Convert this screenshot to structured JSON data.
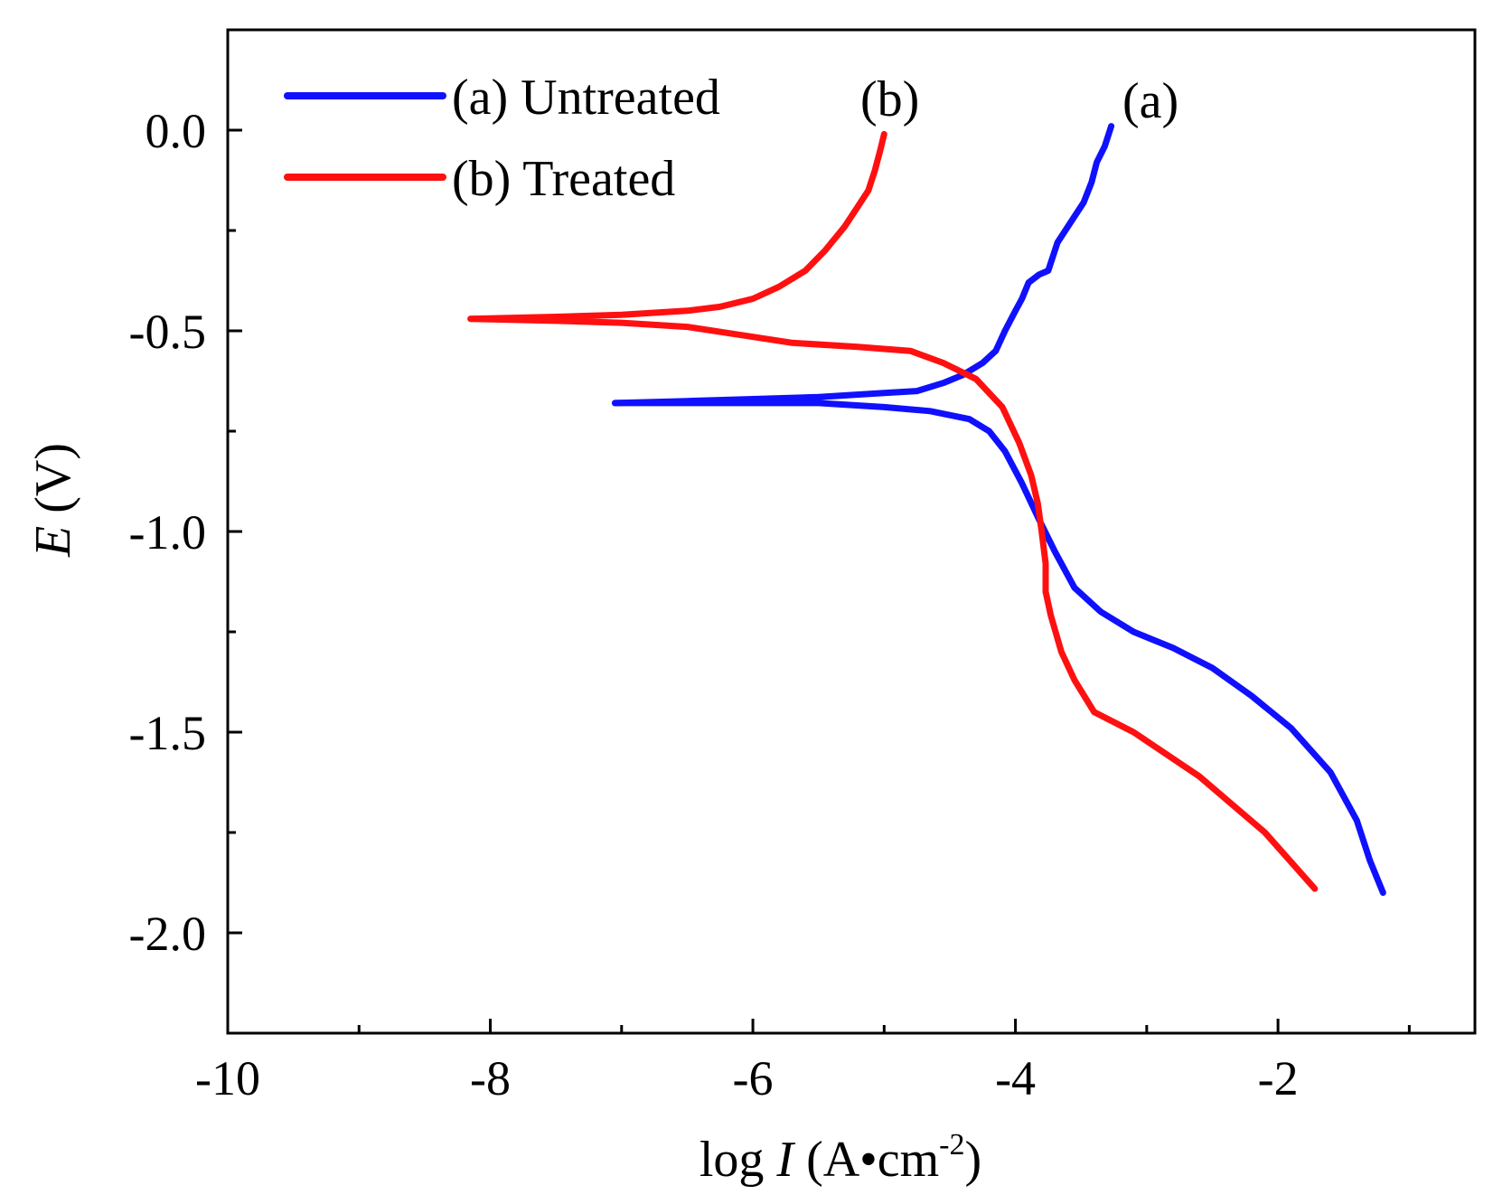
{
  "chart_data": {
    "type": "line",
    "title": "",
    "xlabel": {
      "prefix": "log ",
      "italic": "I",
      "unit_open": " (A•cm",
      "sup": "-2",
      "unit_close": ")"
    },
    "ylabel": {
      "italic": "E",
      "rest": " (V)"
    },
    "xlim": [
      -10,
      -0.5
    ],
    "ylim": [
      -2.25,
      0.25
    ],
    "x_ticks": [
      -10,
      -8,
      -6,
      -4,
      -2
    ],
    "x_tick_labels": [
      "-10",
      "-8",
      "-6",
      "-4",
      "-2"
    ],
    "x_minor_ticks": [
      -9,
      -7,
      -5,
      -3,
      -1
    ],
    "y_ticks": [
      0.0,
      -0.5,
      -1.0,
      -1.5,
      -2.0
    ],
    "y_tick_labels": [
      "0.0",
      "-0.5",
      "-1.0",
      "-1.5",
      "-2.0"
    ],
    "y_minor_ticks": [
      0.25,
      -0.25,
      -0.75,
      -1.25,
      -1.75,
      -2.25
    ],
    "legend": {
      "position": "top-left",
      "entries": [
        "(a) Untreated",
        "(b) Treated"
      ]
    },
    "annotations": [
      {
        "text": "(a)",
        "x": -3.0,
        "y": 0.05
      },
      {
        "text": "(b)",
        "x": -5.1,
        "y": 0.05
      }
    ],
    "series": [
      {
        "name": "(a) Untreated",
        "color": "#1010ff",
        "x": [
          -7.05,
          -6.5,
          -6.0,
          -5.5,
          -5.0,
          -4.75,
          -4.55,
          -4.4,
          -4.25,
          -4.15,
          -4.08,
          -4.0,
          -3.95,
          -3.9,
          -3.82,
          -3.75,
          -3.68,
          -3.58,
          -3.48,
          -3.42,
          -3.38,
          -3.32,
          -3.27
        ],
        "y": [
          -0.68,
          -0.675,
          -0.67,
          -0.665,
          -0.655,
          -0.65,
          -0.63,
          -0.61,
          -0.58,
          -0.55,
          -0.5,
          -0.45,
          -0.42,
          -0.38,
          -0.36,
          -0.35,
          -0.28,
          -0.23,
          -0.18,
          -0.13,
          -0.08,
          -0.04,
          0.01
        ],
        "x_lower": [
          -7.05,
          -6.5,
          -6.0,
          -5.5,
          -5.0,
          -4.65,
          -4.35,
          -4.2,
          -4.08,
          -3.95,
          -3.82,
          -3.7,
          -3.55,
          -3.35,
          -3.1,
          -2.8,
          -2.5,
          -2.2,
          -1.9,
          -1.6,
          -1.4,
          -1.3,
          -1.2
        ],
        "y_lower": [
          -0.68,
          -0.68,
          -0.68,
          -0.68,
          -0.69,
          -0.7,
          -0.72,
          -0.75,
          -0.8,
          -0.88,
          -0.97,
          -1.05,
          -1.14,
          -1.2,
          -1.25,
          -1.29,
          -1.34,
          -1.41,
          -1.49,
          -1.6,
          -1.72,
          -1.82,
          -1.9
        ]
      },
      {
        "name": "(b) Treated",
        "color": "#ff1010",
        "x": [
          -8.15,
          -7.5,
          -7.0,
          -6.5,
          -6.25,
          -6.0,
          -5.8,
          -5.6,
          -5.45,
          -5.3,
          -5.2,
          -5.12,
          -5.07,
          -5.03,
          -5.0
        ],
        "y": [
          -0.47,
          -0.465,
          -0.46,
          -0.45,
          -0.44,
          -0.42,
          -0.39,
          -0.35,
          -0.3,
          -0.24,
          -0.19,
          -0.15,
          -0.1,
          -0.05,
          -0.01
        ],
        "x_lower": [
          -8.15,
          -7.5,
          -7.0,
          -6.5,
          -6.1,
          -5.7,
          -5.2,
          -4.8,
          -4.55,
          -4.3,
          -4.1,
          -3.97,
          -3.88,
          -3.83,
          -3.8,
          -3.77,
          -3.77,
          -3.73,
          -3.65,
          -3.55,
          -3.4,
          -3.1,
          -2.6,
          -2.1,
          -1.72
        ],
        "y_lower": [
          -0.47,
          -0.475,
          -0.48,
          -0.49,
          -0.51,
          -0.53,
          -0.54,
          -0.55,
          -0.58,
          -0.62,
          -0.69,
          -0.78,
          -0.86,
          -0.93,
          -1.0,
          -1.08,
          -1.15,
          -1.21,
          -1.3,
          -1.37,
          -1.45,
          -1.5,
          -1.61,
          -1.75,
          -1.89
        ]
      }
    ]
  }
}
